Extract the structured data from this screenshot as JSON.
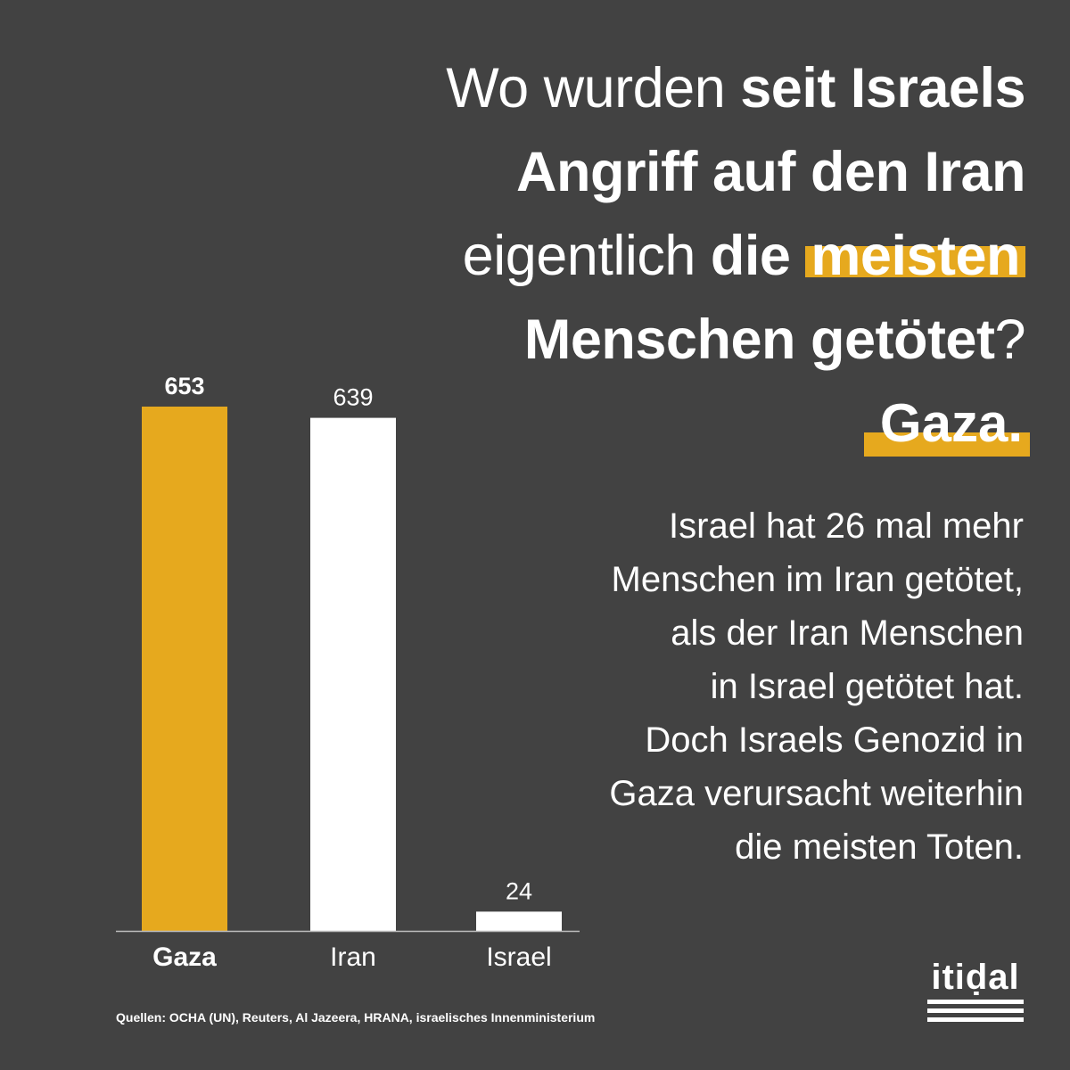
{
  "headline": {
    "line1_light": "Wo wurden ",
    "line1_bold": "seit Israels",
    "line2_bold": "Angriff auf den Iran",
    "line3_light": "eigentlich ",
    "line3_bold": "die ",
    "line3_highlight": "meisten",
    "line4_bold": "Menschen getötet",
    "line4_light": "?"
  },
  "answer": "Gaza.",
  "body_lines": [
    "Israel hat 26 mal mehr",
    "Menschen im Iran getötet,",
    "als der Iran Menschen",
    "in Israel getötet hat.",
    "Doch Israels Genozid in",
    "Gaza verursacht weiterhin",
    "die meisten Toten."
  ],
  "sources": "Quellen: OCHA (UN), Reuters, Al Jazeera, HRANA, israelisches Innenministerium",
  "logo": {
    "text": "itiḍal"
  },
  "colors": {
    "background": "#424242",
    "accent": "#e6a91e",
    "bar": "#ffffff"
  },
  "chart_data": {
    "type": "bar",
    "categories": [
      "Gaza",
      "Iran",
      "Israel"
    ],
    "values": [
      653,
      639,
      24
    ],
    "ylim": [
      0,
      653
    ],
    "highlight_index": 0,
    "grid": false,
    "legend": "none"
  }
}
